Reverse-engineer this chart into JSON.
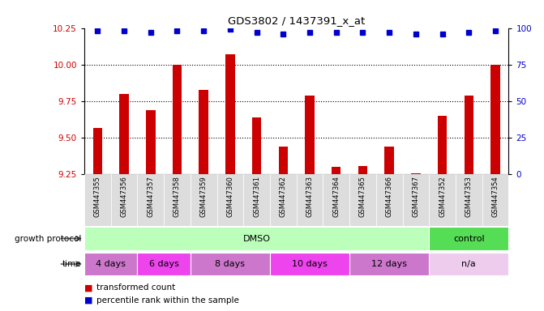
{
  "title": "GDS3802 / 1437391_x_at",
  "samples": [
    "GSM447355",
    "GSM447356",
    "GSM447357",
    "GSM447358",
    "GSM447359",
    "GSM447360",
    "GSM447361",
    "GSM447362",
    "GSM447363",
    "GSM447364",
    "GSM447365",
    "GSM447366",
    "GSM447367",
    "GSM447352",
    "GSM447353",
    "GSM447354"
  ],
  "bar_values": [
    9.57,
    9.8,
    9.69,
    10.0,
    9.83,
    10.07,
    9.64,
    9.44,
    9.79,
    9.3,
    9.31,
    9.44,
    9.26,
    9.65,
    9.79,
    10.0
  ],
  "percentile_values": [
    98,
    98,
    97,
    98,
    98,
    99,
    97,
    96,
    97,
    97,
    97,
    97,
    96,
    96,
    97,
    98
  ],
  "bar_color": "#cc0000",
  "dot_color": "#0000cc",
  "ylim_left": [
    9.25,
    10.25
  ],
  "ylim_right": [
    0,
    100
  ],
  "yticks_left": [
    9.25,
    9.5,
    9.75,
    10.0,
    10.25
  ],
  "yticks_right": [
    0,
    25,
    50,
    75,
    100
  ],
  "grid_values": [
    9.5,
    9.75,
    10.0
  ],
  "groups_protocol": [
    {
      "label": "DMSO",
      "start": 0,
      "end": 12,
      "color": "#bbffbb"
    },
    {
      "label": "control",
      "start": 13,
      "end": 15,
      "color": "#55dd55"
    }
  ],
  "groups_time": [
    {
      "label": "4 days",
      "start": 0,
      "end": 1,
      "color": "#cc77cc"
    },
    {
      "label": "6 days",
      "start": 2,
      "end": 3,
      "color": "#ee44ee"
    },
    {
      "label": "8 days",
      "start": 4,
      "end": 6,
      "color": "#cc77cc"
    },
    {
      "label": "10 days",
      "start": 7,
      "end": 9,
      "color": "#ee44ee"
    },
    {
      "label": "12 days",
      "start": 10,
      "end": 12,
      "color": "#cc77cc"
    },
    {
      "label": "n/a",
      "start": 13,
      "end": 15,
      "color": "#eeccee"
    }
  ],
  "sample_bg_color": "#dddddd",
  "background_color": "#ffffff"
}
